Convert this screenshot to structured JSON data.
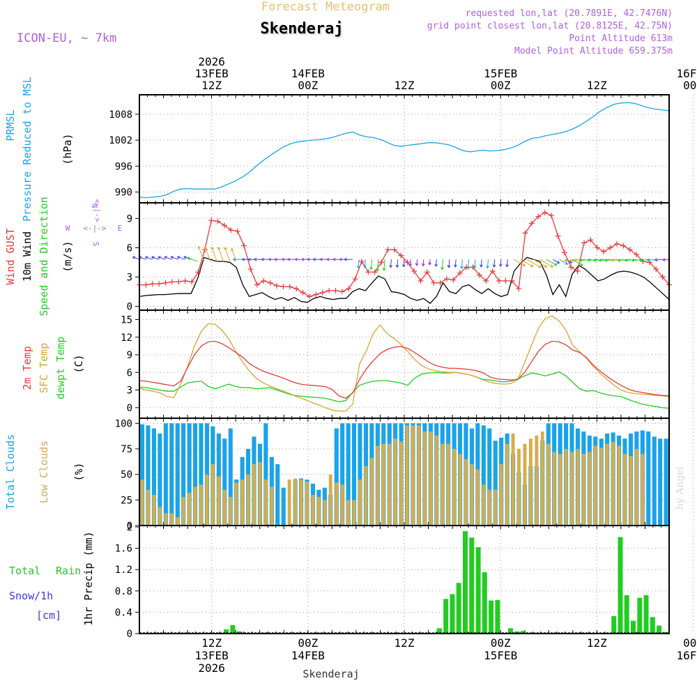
{
  "header": {
    "product": "Forecast Meteogram",
    "location": "Skenderaj",
    "model": "ICON-EU, ~ 7km",
    "requested": "requested lon,lat (20.7891E, 42.7476N)",
    "gridpoint": "grid point closest lon,lat (20.8125E, 42.75N)",
    "point_alt": "Point Altitude 613m",
    "model_alt": "Model Point Altitude 659.375m",
    "footer_label": "Skenderaj",
    "watermark": "by Angel"
  },
  "colors": {
    "pressure": "#1aa3e8",
    "gust": "#e83a3a",
    "wind": "#000000",
    "temp2m": "#e83a3a",
    "sfc": "#d9a530",
    "dewpt": "#22cc22",
    "total_cloud": "#1aa3e8",
    "low_cloud": "#d4ad4e",
    "rain": "#22cc22",
    "snow": "#3a3ae8",
    "header_purple": "#b060e0",
    "header_orange": "#e8c070"
  },
  "time_axis": {
    "n_hours": 66,
    "top_labels": [
      {
        "hour": 9,
        "lines": [
          "2026",
          "13FEB",
          "12Z"
        ]
      },
      {
        "hour": 21,
        "lines": [
          "14FEB",
          "00Z"
        ]
      },
      {
        "hour": 33,
        "lines": [
          "12Z"
        ]
      },
      {
        "hour": 45,
        "lines": [
          "15FEB",
          "00Z"
        ]
      },
      {
        "hour": 57,
        "lines": [
          "12Z"
        ]
      },
      {
        "hour": 69,
        "lines": [
          "16FEB",
          "00Z"
        ]
      }
    ],
    "bottom_labels": [
      {
        "hour": 9,
        "lines": [
          "12Z",
          "13FEB",
          "2026"
        ]
      },
      {
        "hour": 21,
        "lines": [
          "00Z",
          "14FEB"
        ]
      },
      {
        "hour": 33,
        "lines": [
          "12Z"
        ]
      },
      {
        "hour": 45,
        "lines": [
          "00Z",
          "15FEB"
        ]
      },
      {
        "hour": 57,
        "lines": [
          "12Z"
        ]
      },
      {
        "hour": 69,
        "lines": [
          "00Z",
          "16FEB"
        ]
      }
    ]
  },
  "chart_data": [
    {
      "type": "line",
      "id": "pressure",
      "title": "PRMSL Pressure Reduced to MSL",
      "label_lines": [
        "PRMSL",
        "Pressure Reduced to MSL"
      ],
      "ylabel": "(hPa)",
      "yticks": [
        990,
        996,
        1002,
        1008
      ],
      "ylim": [
        987.5,
        1012.5
      ],
      "series": [
        {
          "name": "PRMSL",
          "values": [
            988.8,
            988.7,
            988.8,
            989.0,
            989.4,
            990.2,
            990.7,
            990.8,
            990.7,
            990.7,
            990.7,
            990.7,
            991.2,
            991.9,
            992.6,
            993.5,
            994.6,
            996.0,
            997.3,
            998.4,
            999.5,
            1000.5,
            1001.2,
            1001.6,
            1001.8,
            1002.0,
            1002.1,
            1002.3,
            1002.6,
            1003.1,
            1003.6,
            1003.9,
            1003.2,
            1002.8,
            1002.6,
            1002.2,
            1001.5,
            1000.8,
            1000.6,
            1000.8,
            1001.0,
            1001.2,
            1001.4,
            1001.4,
            1001.2,
            1000.9,
            1000.3,
            999.6,
            999.3,
            999.5,
            999.7,
            999.5,
            999.6,
            999.8,
            1000.2,
            1000.8,
            1001.7,
            1002.4,
            1002.6,
            1003.0,
            1003.3,
            1003.6,
            1004.0,
            1004.6,
            1005.4,
            1006.4,
            1007.5,
            1008.7,
            1009.6,
            1010.3,
            1010.6,
            1010.7,
            1010.5,
            1010.0,
            1009.5,
            1009.2,
            1009.0,
            1008.8
          ]
        }
      ]
    },
    {
      "type": "line",
      "id": "wind",
      "title": "Wind GUST 10m Wind Speed and Direction",
      "label_lines": [
        "Wind GUST",
        "10m Wind",
        "Speed and Direction"
      ],
      "ylabel": "(m/s)",
      "yticks": [
        0,
        3,
        6,
        9
      ],
      "ylim": [
        -0.4,
        10.6
      ],
      "compass": {
        "n": "N",
        "s": "S",
        "w": "W",
        "e": "E"
      },
      "series": [
        {
          "name": "Wind GUST",
          "values": [
            2.2,
            2.2,
            2.3,
            2.3,
            2.4,
            2.5,
            2.5,
            2.6,
            2.5,
            3.5,
            5.8,
            8.8,
            8.7,
            8.3,
            7.8,
            7.7,
            6.2,
            3.8,
            2.2,
            2.6,
            2.4,
            2.1,
            2.0,
            2.0,
            1.8,
            1.4,
            1.0,
            1.2,
            1.4,
            1.6,
            1.6,
            1.5,
            1.8,
            2.8,
            4.6,
            3.5,
            3.5,
            4.5,
            5.8,
            5.8,
            5.2,
            4.5,
            3.6,
            2.6,
            3.5,
            2.4,
            2.4,
            2.8,
            2.7,
            3.4,
            4.0,
            4.0,
            3.2,
            2.6,
            3.6,
            2.6,
            2.6,
            2.6,
            1.8,
            7.5,
            8.5,
            9.2,
            9.6,
            9.3,
            7.2,
            5.5,
            4.0,
            3.6,
            6.5,
            6.8,
            6.0,
            5.6,
            6.0,
            6.4,
            6.2,
            5.8,
            5.3,
            4.6,
            4.5,
            3.8,
            3.0,
            2.2
          ]
        },
        {
          "name": "10m Wind",
          "values": [
            1.0,
            1.1,
            1.15,
            1.2,
            1.2,
            1.25,
            1.3,
            1.3,
            1.3,
            2.8,
            5.0,
            4.8,
            4.6,
            4.6,
            4.5,
            4.0,
            2.2,
            1.0,
            1.2,
            1.4,
            1.0,
            0.7,
            0.9,
            0.6,
            0.9,
            0.5,
            0.4,
            0.8,
            1.0,
            0.8,
            0.7,
            0.8,
            0.8,
            1.5,
            1.8,
            1.6,
            2.4,
            3.1,
            2.8,
            1.5,
            1.4,
            1.2,
            0.8,
            0.6,
            0.8,
            0.3,
            1.0,
            2.4,
            1.5,
            1.3,
            2.0,
            2.2,
            1.7,
            1.3,
            1.8,
            1.3,
            1.0,
            1.2,
            3.6,
            4.4,
            5.0,
            4.8,
            4.6,
            3.2,
            1.2,
            2.2,
            1.0,
            3.3,
            4.2,
            3.8,
            3.2,
            2.6,
            2.8,
            3.2,
            3.5,
            3.6,
            3.5,
            3.3,
            3.0,
            2.5,
            1.9,
            1.3,
            0.7
          ]
        }
      ]
    },
    {
      "type": "line",
      "id": "temperature",
      "title": "2m Temp SFC Temp dewpt Temp",
      "label_lines": [
        "2m Temp",
        "SFC Temp",
        "dewpt Temp"
      ],
      "ylabel": "(C)",
      "yticks": [
        0,
        3,
        6,
        9,
        12,
        15
      ],
      "ylim": [
        -1.8,
        16.6
      ],
      "series": [
        {
          "name": "2m Temp",
          "values": [
            4.6,
            4.5,
            4.3,
            4.1,
            3.9,
            3.7,
            4.5,
            6.8,
            9.0,
            10.5,
            11.2,
            11.3,
            10.9,
            10.2,
            9.4,
            8.6,
            7.5,
            6.8,
            6.2,
            5.8,
            5.4,
            5.0,
            4.5,
            4.1,
            3.9,
            3.8,
            3.7,
            3.6,
            3.1,
            2.0,
            1.6,
            2.5,
            4.8,
            6.6,
            8.0,
            9.2,
            9.9,
            10.3,
            10.4,
            10.1,
            9.4,
            8.6,
            7.8,
            7.2,
            6.9,
            6.7,
            6.7,
            6.6,
            6.5,
            6.3,
            5.9,
            5.2,
            4.9,
            4.8,
            4.7,
            4.8,
            6.0,
            7.8,
            9.6,
            10.8,
            11.3,
            11.2,
            10.7,
            9.8,
            9.4,
            8.5,
            7.2,
            6.2,
            5.3,
            4.5,
            3.8,
            3.2,
            2.8,
            2.6,
            2.4,
            2.2,
            2.1,
            2.0
          ]
        },
        {
          "name": "SFC Temp",
          "values": [
            3.3,
            3.0,
            2.8,
            2.5,
            1.9,
            1.7,
            4.0,
            7.0,
            10.5,
            13.0,
            14.3,
            14.2,
            13.2,
            11.7,
            9.6,
            7.8,
            6.2,
            5.0,
            4.2,
            3.7,
            3.2,
            2.8,
            2.3,
            1.8,
            1.4,
            0.9,
            0.5,
            0.0,
            -0.4,
            -0.6,
            -0.6,
            0.6,
            7.4,
            9.7,
            12.7,
            14.1,
            12.6,
            11.8,
            10.8,
            9.6,
            8.2,
            7.2,
            6.6,
            6.3,
            6.1,
            6.0,
            6.0,
            5.8,
            5.6,
            5.2,
            4.7,
            4.3,
            4.1,
            4.0,
            4.1,
            4.8,
            7.7,
            10.6,
            13.5,
            15.2,
            15.6,
            14.8,
            13.2,
            10.6,
            9.5,
            8.4,
            7.0,
            5.8,
            4.8,
            3.8,
            3.0,
            2.6,
            2.4,
            2.3,
            2.2,
            2.1,
            2.0,
            1.9
          ]
        },
        {
          "name": "dewpt Temp",
          "values": [
            3.5,
            3.4,
            3.2,
            3.0,
            2.8,
            2.8,
            3.5,
            4.2,
            4.4,
            4.5,
            3.6,
            3.2,
            3.6,
            4.0,
            3.6,
            3.4,
            3.4,
            3.2,
            3.3,
            3.4,
            3.0,
            2.6,
            2.2,
            2.0,
            1.9,
            1.8,
            1.7,
            1.6,
            1.3,
            1.0,
            1.2,
            2.6,
            3.8,
            4.2,
            4.5,
            4.6,
            4.6,
            4.4,
            4.2,
            3.8,
            5.0,
            5.7,
            5.9,
            6.0,
            5.9,
            5.9,
            6.0,
            5.8,
            5.6,
            5.2,
            4.8,
            4.7,
            4.5,
            4.4,
            4.5,
            4.9,
            5.4,
            5.9,
            5.7,
            5.4,
            5.7,
            6.1,
            5.4,
            4.3,
            3.2,
            2.8,
            2.9,
            2.5,
            2.2,
            2.0,
            1.9,
            1.4,
            1.0,
            0.6,
            0.4,
            0.2,
            0.0,
            -0.1
          ]
        }
      ]
    },
    {
      "type": "bar",
      "id": "clouds",
      "title": "Total Clouds Low Clouds",
      "label_lines": [
        "Total Clouds",
        "Low Clouds"
      ],
      "ylabel": "(%)",
      "yticks": [
        0,
        25,
        50,
        75,
        100
      ],
      "ylim": [
        0,
        105
      ],
      "series": [
        {
          "name": "Total Clouds",
          "values": [
            99,
            98,
            95,
            90,
            100,
            100,
            100,
            100,
            100,
            100,
            100,
            100,
            97,
            90,
            85,
            95,
            45,
            67,
            75,
            87,
            80,
            100,
            67,
            60,
            37,
            0,
            45,
            46,
            45,
            41,
            35,
            37,
            30,
            95,
            100,
            100,
            100,
            100,
            100,
            100,
            100,
            100,
            100,
            100,
            100,
            100,
            100,
            100,
            100,
            100,
            100,
            100,
            100,
            100,
            100,
            100,
            95,
            100,
            98,
            95,
            83,
            86,
            90,
            70,
            52,
            40,
            58,
            58,
            83,
            100,
            100,
            100,
            100,
            100,
            95,
            92,
            88,
            87,
            85,
            90,
            91,
            88,
            85,
            90,
            92,
            93,
            92,
            87,
            85,
            85
          ]
        },
        {
          "name": "Low Clouds",
          "values": [
            45,
            35,
            30,
            18,
            12,
            12,
            8,
            28,
            32,
            38,
            40,
            50,
            60,
            48,
            35,
            28,
            42,
            45,
            50,
            60,
            62,
            45,
            38,
            0,
            0,
            45,
            46,
            45,
            43,
            30,
            28,
            25,
            50,
            42,
            40,
            25,
            25,
            45,
            58,
            66,
            78,
            80,
            80,
            85,
            82,
            98,
            98,
            98,
            92,
            92,
            88,
            80,
            80,
            75,
            70,
            65,
            60,
            55,
            40,
            35,
            35,
            60,
            80,
            90,
            75,
            80,
            85,
            88,
            92,
            80,
            72,
            70,
            75,
            72,
            75,
            70,
            72,
            78,
            76,
            80,
            82,
            78,
            70,
            68,
            75,
            70
          ]
        }
      ]
    },
    {
      "type": "bar",
      "id": "precip",
      "title": "1hr Precip (mm)",
      "label_lines": [
        "Total",
        "Rain",
        "Snow/1h",
        "[cm]"
      ],
      "ylabel": "1hr Precip (mm)",
      "yticks": [
        0,
        0.4,
        0.8,
        1.2,
        1.6,
        2
      ],
      "ylim": [
        0,
        2
      ],
      "series": [
        {
          "name": "Rain",
          "values": [
            0,
            0,
            0,
            0,
            0,
            0,
            0,
            0,
            0,
            0,
            0,
            0,
            0,
            0.08,
            0.16,
            0.04,
            0,
            0,
            0,
            0,
            0,
            0,
            0,
            0,
            0,
            0,
            0,
            0,
            0,
            0,
            0,
            0,
            0,
            0,
            0,
            0,
            0,
            0,
            0,
            0,
            0,
            0,
            0,
            0,
            0,
            0,
            0.1,
            0.65,
            0.74,
            0.95,
            1.92,
            1.8,
            1.62,
            1.15,
            0.62,
            0.63,
            0,
            0.1,
            0.04,
            0.05,
            0,
            0,
            0,
            0,
            0,
            0,
            0,
            0,
            0,
            0,
            0,
            0,
            0,
            0.33,
            1.81,
            0.72,
            0.24,
            0.67,
            0.72,
            0.31,
            0.15,
            0.03
          ]
        }
      ]
    }
  ]
}
